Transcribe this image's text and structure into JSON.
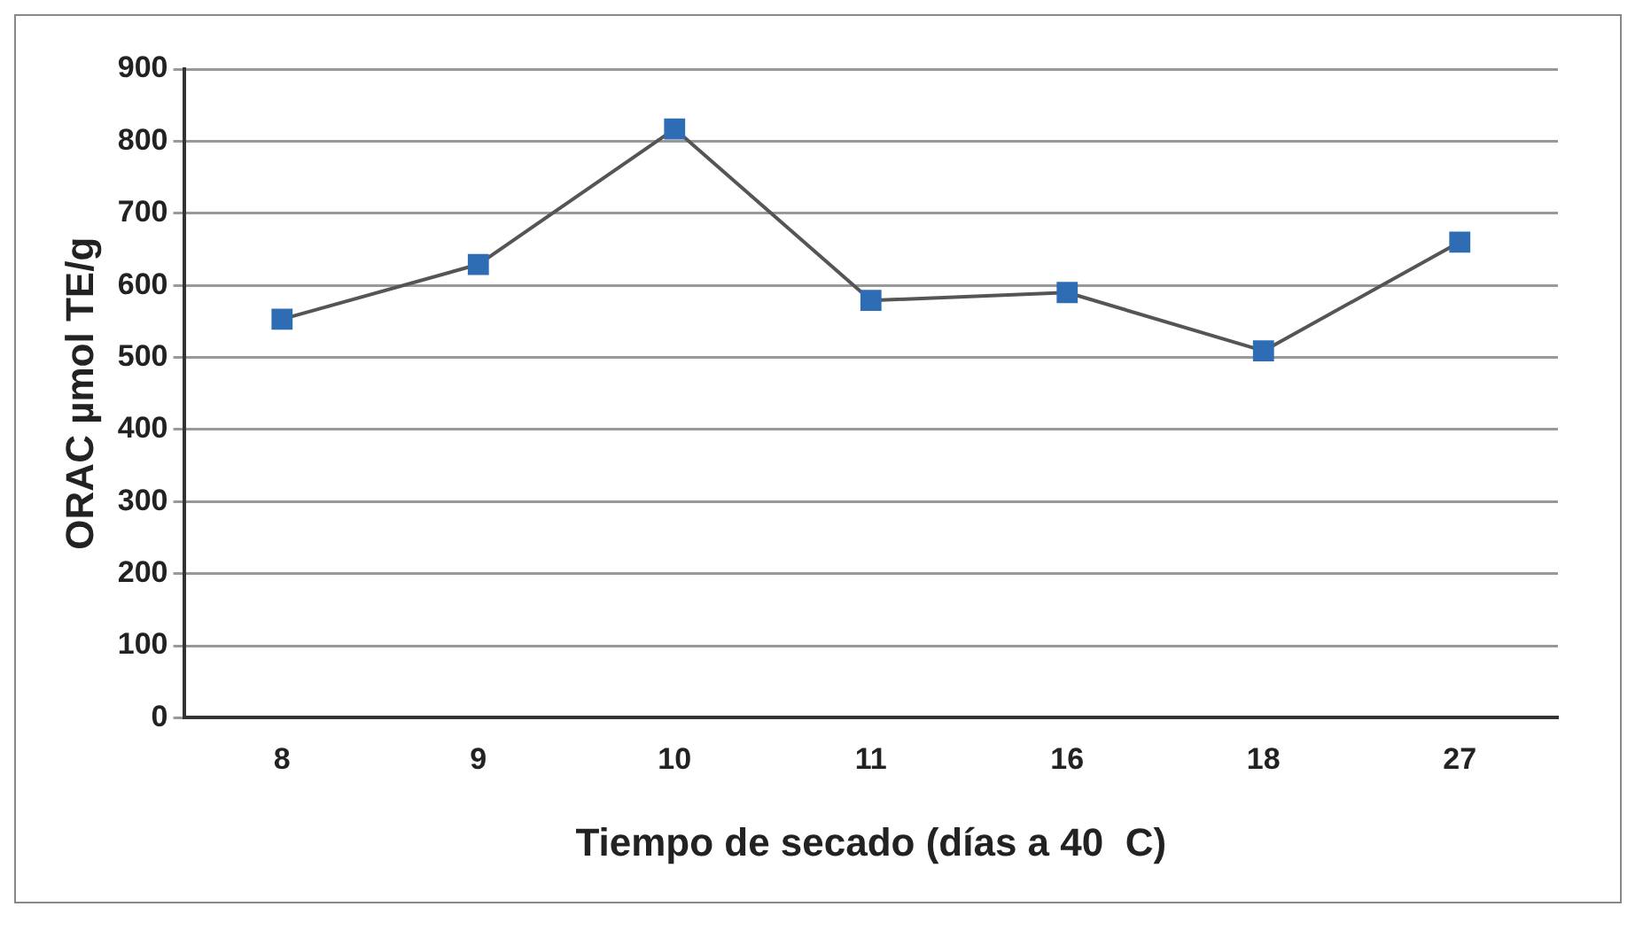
{
  "chart_data": {
    "type": "line",
    "xlabel": "Tiempo de secado (días a 40  C)",
    "ylabel": "ORAC µmol TE/g",
    "categories": [
      "8",
      "9",
      "10",
      "11",
      "16",
      "18",
      "27"
    ],
    "series": [
      {
        "color": "#2e6db4",
        "values": [
          553,
          629,
          817,
          579,
          590,
          509,
          660
        ]
      }
    ],
    "ylim": [
      0,
      900
    ],
    "yticks": [
      0,
      100,
      200,
      300,
      400,
      500,
      600,
      700,
      800,
      900
    ],
    "grid": "y",
    "legend": false,
    "marker": "square",
    "line_style": "solid"
  }
}
